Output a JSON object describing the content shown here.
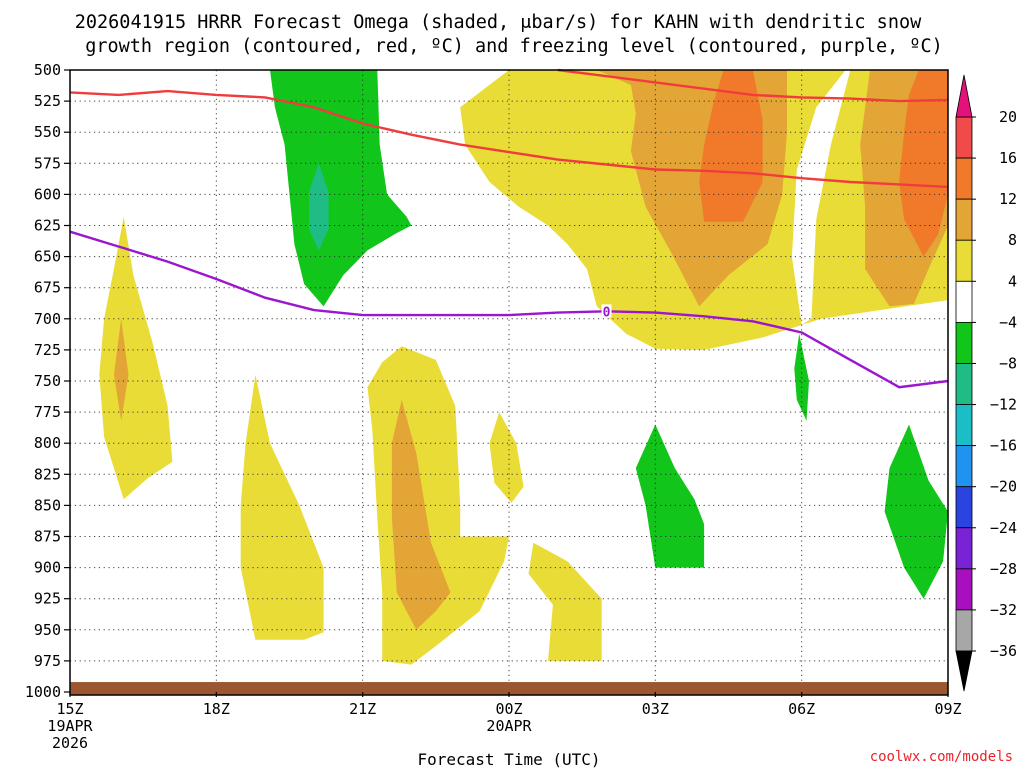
{
  "chart_data": {
    "type": "contour",
    "title_line1": "2026041915 HRRR Forecast Omega (shaded, μbar/s) for KAHN with dendritic snow",
    "title_line2": "growth region (contoured, red, ºC) and freezing level (contoured, purple, ºC)",
    "xlabel": "Forecast Time (UTC)",
    "credit": "coolwx.com/models",
    "x_range_hours": [
      0,
      18
    ],
    "x_ticks": [
      {
        "h": 0,
        "label": "15Z",
        "sub": [
          "19APR",
          "2026"
        ]
      },
      {
        "h": 3,
        "label": "18Z",
        "sub": []
      },
      {
        "h": 6,
        "label": "21Z",
        "sub": []
      },
      {
        "h": 9,
        "label": "00Z",
        "sub": [
          "20APR"
        ]
      },
      {
        "h": 12,
        "label": "03Z",
        "sub": []
      },
      {
        "h": 15,
        "label": "06Z",
        "sub": []
      },
      {
        "h": 18,
        "label": "09Z",
        "sub": []
      }
    ],
    "y_ticks": [
      500,
      525,
      550,
      575,
      600,
      625,
      650,
      675,
      700,
      725,
      750,
      775,
      800,
      825,
      850,
      875,
      900,
      925,
      950,
      975,
      1000
    ],
    "colorbar": {
      "labels": [
        "20",
        "16",
        "12",
        "8",
        "4",
        "−4",
        "−8",
        "−12",
        "−16",
        "−20",
        "−24",
        "−28",
        "−32",
        "−36"
      ],
      "bins": [
        {
          "lo": 16,
          "hi": 20,
          "color": "#f04a4a"
        },
        {
          "lo": 12,
          "hi": 16,
          "color": "#f07a2a"
        },
        {
          "lo": 8,
          "hi": 12,
          "color": "#e3a535"
        },
        {
          "lo": 4,
          "hi": 8,
          "color": "#e9dc37"
        },
        {
          "lo": -4,
          "hi": 4,
          "color": "#ffffff"
        },
        {
          "lo": -8,
          "hi": -4,
          "color": "#12c51a"
        },
        {
          "lo": -12,
          "hi": -8,
          "color": "#1fbd85"
        },
        {
          "lo": -16,
          "hi": -12,
          "color": "#1bbdc7"
        },
        {
          "lo": -20,
          "hi": -16,
          "color": "#2093f0"
        },
        {
          "lo": -24,
          "hi": -20,
          "color": "#2a44e0"
        },
        {
          "lo": -28,
          "hi": -24,
          "color": "#7a22d6"
        },
        {
          "lo": -32,
          "hi": -28,
          "color": "#a80fbf"
        },
        {
          "lo": -36,
          "hi": -32,
          "color": "#a7a7a7"
        }
      ],
      "over_color": "#e5117a",
      "under_color": "#000000"
    },
    "shaded_regions": [
      {
        "label": "rising 4 to 8 (center column)",
        "color": "#e9dc37",
        "points": [
          [
            9,
            500
          ],
          [
            18,
            500
          ],
          [
            18,
            685
          ],
          [
            15.4,
            700
          ],
          [
            14.2,
            715
          ],
          [
            13,
            725
          ],
          [
            12,
            724
          ],
          [
            11.4,
            712
          ],
          [
            10.8,
            690
          ],
          [
            10.6,
            660
          ],
          [
            10.2,
            640
          ],
          [
            9.8,
            625
          ],
          [
            9.2,
            610
          ],
          [
            8.6,
            590
          ],
          [
            8.1,
            560
          ],
          [
            8,
            530
          ]
        ]
      },
      {
        "label": "rising 8 to 12 (center)",
        "color": "#e3a535",
        "points": [
          [
            9.9,
            500
          ],
          [
            10.8,
            500
          ],
          [
            11.5,
            512
          ],
          [
            11.6,
            535
          ],
          [
            11.5,
            565
          ],
          [
            11.8,
            610
          ],
          [
            12.3,
            645
          ],
          [
            12.9,
            690
          ],
          [
            13.5,
            665
          ],
          [
            14.3,
            640
          ],
          [
            14.6,
            600
          ],
          [
            14.7,
            550
          ],
          [
            14.7,
            500
          ]
        ]
      },
      {
        "label": "rising 12 to 16 (center)",
        "color": "#f07a2a",
        "points": [
          [
            13.4,
            500
          ],
          [
            14.0,
            500
          ],
          [
            14.2,
            540
          ],
          [
            14.2,
            590
          ],
          [
            13.8,
            622
          ],
          [
            13.0,
            622
          ],
          [
            12.9,
            590
          ],
          [
            13.0,
            560
          ],
          [
            13.2,
            525
          ]
        ]
      },
      {
        "label": "sinking gap",
        "color": "#ffffff",
        "points": [
          [
            15.9,
            500
          ],
          [
            16.0,
            500
          ],
          [
            15.6,
            560
          ],
          [
            15.3,
            620
          ],
          [
            15.2,
            700
          ],
          [
            15.0,
            705
          ],
          [
            14.8,
            650
          ],
          [
            14.9,
            580
          ],
          [
            15.3,
            530
          ]
        ]
      },
      {
        "label": "rising 8 to 12 (right)",
        "color": "#e3a535",
        "points": [
          [
            16.4,
            500
          ],
          [
            18,
            500
          ],
          [
            18,
            625
          ],
          [
            17.6,
            660
          ],
          [
            17.3,
            688
          ],
          [
            16.8,
            690
          ],
          [
            16.3,
            660
          ],
          [
            16.3,
            610
          ],
          [
            16.2,
            560
          ]
        ]
      },
      {
        "label": "rising 12 to 16 (right)",
        "color": "#f07a2a",
        "points": [
          [
            17.4,
            500
          ],
          [
            18,
            500
          ],
          [
            18,
            600
          ],
          [
            17.8,
            632
          ],
          [
            17.5,
            650
          ],
          [
            17.1,
            620
          ],
          [
            17.0,
            590
          ],
          [
            17.1,
            550
          ],
          [
            17.2,
            520
          ]
        ]
      },
      {
        "label": "sinking -4 to -8 (upper)",
        "color": "#12c51a",
        "points": [
          [
            4.1,
            500
          ],
          [
            6.3,
            500
          ],
          [
            6.35,
            560
          ],
          [
            6.5,
            600
          ],
          [
            6.9,
            618
          ],
          [
            7.0,
            625
          ],
          [
            6.7,
            631
          ],
          [
            6.1,
            645
          ],
          [
            5.6,
            665
          ],
          [
            5.2,
            690
          ],
          [
            4.8,
            672
          ],
          [
            4.6,
            640
          ],
          [
            4.5,
            600
          ],
          [
            4.4,
            560
          ],
          [
            4.2,
            530
          ]
        ]
      },
      {
        "label": "sinking -8 to -12 (upper)",
        "color": "#1fbd85",
        "points": [
          [
            5.1,
            575
          ],
          [
            5.3,
            598
          ],
          [
            5.3,
            628
          ],
          [
            5.1,
            645
          ],
          [
            4.9,
            628
          ],
          [
            4.9,
            598
          ]
        ]
      },
      {
        "label": "rising 4 to 8 (left lobe)",
        "color": "#e9dc37",
        "points": [
          [
            1.1,
            618
          ],
          [
            1.3,
            665
          ],
          [
            1.7,
            720
          ],
          [
            2.0,
            770
          ],
          [
            2.1,
            815
          ],
          [
            1.6,
            828
          ],
          [
            1.1,
            845
          ],
          [
            0.7,
            795
          ],
          [
            0.6,
            745
          ],
          [
            0.7,
            700
          ],
          [
            0.9,
            660
          ]
        ]
      },
      {
        "label": "rising 8 to 12 (left)",
        "color": "#e3a535",
        "points": [
          [
            1.05,
            700
          ],
          [
            1.2,
            745
          ],
          [
            1.05,
            782
          ],
          [
            0.9,
            745
          ]
        ]
      },
      {
        "label": "rising 4 to 8 (18-19Z)",
        "color": "#e9dc37",
        "points": [
          [
            3.8,
            745
          ],
          [
            4.1,
            800
          ],
          [
            4.7,
            850
          ],
          [
            5.2,
            900
          ],
          [
            5.2,
            952
          ],
          [
            4.8,
            958
          ],
          [
            3.8,
            958
          ],
          [
            3.5,
            900
          ],
          [
            3.5,
            850
          ],
          [
            3.6,
            800
          ]
        ]
      },
      {
        "label": "rising 4 to 8 (21-23Z)",
        "color": "#e9dc37",
        "points": [
          [
            6.4,
            735
          ],
          [
            6.8,
            722
          ],
          [
            7.5,
            733
          ],
          [
            7.9,
            770
          ],
          [
            8.0,
            850
          ],
          [
            8.0,
            875
          ],
          [
            9.0,
            875
          ],
          [
            8.9,
            895
          ],
          [
            8.4,
            935
          ],
          [
            7.6,
            960
          ],
          [
            7.0,
            978
          ],
          [
            6.4,
            975
          ],
          [
            6.4,
            920
          ],
          [
            6.3,
            860
          ],
          [
            6.2,
            790
          ],
          [
            6.1,
            755
          ]
        ]
      },
      {
        "label": "rising 8 to 12 (21-23Z)",
        "color": "#e3a535",
        "points": [
          [
            6.8,
            765
          ],
          [
            7.1,
            808
          ],
          [
            7.4,
            880
          ],
          [
            7.8,
            920
          ],
          [
            7.5,
            935
          ],
          [
            7.1,
            950
          ],
          [
            6.7,
            920
          ],
          [
            6.6,
            860
          ],
          [
            6.6,
            800
          ]
        ]
      },
      {
        "label": "rising 4 to 8 (00Z blob)",
        "color": "#e9dc37",
        "points": [
          [
            8.8,
            775
          ],
          [
            9.15,
            800
          ],
          [
            9.3,
            835
          ],
          [
            9.05,
            848
          ],
          [
            8.7,
            832
          ],
          [
            8.6,
            800
          ]
        ]
      },
      {
        "label": "rising 4 to 8 (00-02Z)",
        "color": "#e9dc37",
        "points": [
          [
            9.5,
            880
          ],
          [
            10.2,
            895
          ],
          [
            10.9,
            925
          ],
          [
            10.9,
            975
          ],
          [
            9.8,
            975
          ],
          [
            9.9,
            930
          ],
          [
            9.4,
            905
          ]
        ]
      },
      {
        "label": "sinking -4 to -8 (03Z)",
        "color": "#12c51a",
        "points": [
          [
            12.0,
            785
          ],
          [
            12.4,
            820
          ],
          [
            12.8,
            845
          ],
          [
            13.0,
            865
          ],
          [
            13.0,
            900
          ],
          [
            12.0,
            900
          ],
          [
            11.8,
            850
          ],
          [
            11.6,
            820
          ]
        ]
      },
      {
        "label": "sinking -4 to -8 (06Z)",
        "color": "#12c51a",
        "points": [
          [
            14.95,
            712
          ],
          [
            15.15,
            750
          ],
          [
            15.1,
            782
          ],
          [
            14.9,
            765
          ],
          [
            14.85,
            740
          ]
        ]
      },
      {
        "label": "sinking -4 to -8 (08Z)",
        "color": "#12c51a",
        "points": [
          [
            17.2,
            785
          ],
          [
            17.6,
            830
          ],
          [
            18.0,
            855
          ],
          [
            17.9,
            895
          ],
          [
            17.5,
            925
          ],
          [
            17.1,
            900
          ],
          [
            16.7,
            855
          ],
          [
            16.8,
            820
          ]
        ]
      }
    ],
    "dendritic_contours": [
      {
        "color": "#f03c3c",
        "points": [
          [
            0,
            518
          ],
          [
            1,
            520
          ],
          [
            2,
            517
          ],
          [
            3,
            520
          ],
          [
            4,
            522
          ],
          [
            5,
            530
          ],
          [
            6,
            543
          ],
          [
            7,
            552
          ],
          [
            8,
            560
          ],
          [
            9,
            566
          ],
          [
            10,
            572
          ],
          [
            11,
            576
          ],
          [
            12,
            580
          ],
          [
            13,
            581
          ],
          [
            14,
            583
          ],
          [
            15,
            587
          ],
          [
            16,
            590
          ],
          [
            17,
            592
          ],
          [
            18,
            594
          ]
        ]
      },
      {
        "color": "#f03c3c",
        "points": [
          [
            10,
            500
          ],
          [
            11,
            505
          ],
          [
            12,
            510
          ],
          [
            13,
            515
          ],
          [
            14,
            520
          ],
          [
            15,
            522
          ],
          [
            16,
            523
          ],
          [
            17,
            525
          ],
          [
            18,
            524
          ]
        ]
      }
    ],
    "freezing_level": {
      "color": "#9b16d0",
      "label": "0",
      "label_at_hour": 11,
      "points": [
        [
          0,
          630
        ],
        [
          1,
          642
        ],
        [
          2,
          654
        ],
        [
          3,
          668
        ],
        [
          4,
          683
        ],
        [
          5,
          693
        ],
        [
          6,
          697
        ],
        [
          7,
          697
        ],
        [
          8,
          697
        ],
        [
          9,
          697
        ],
        [
          10,
          695
        ],
        [
          11,
          694
        ],
        [
          12,
          695
        ],
        [
          13,
          698
        ],
        [
          14,
          702
        ],
        [
          15,
          711
        ],
        [
          16,
          733
        ],
        [
          17,
          755
        ],
        [
          18,
          750
        ]
      ]
    },
    "terrain": {
      "color": "#9c5630",
      "top_level_hpa": 992,
      "note": "surface band near 1000 hPa"
    }
  }
}
